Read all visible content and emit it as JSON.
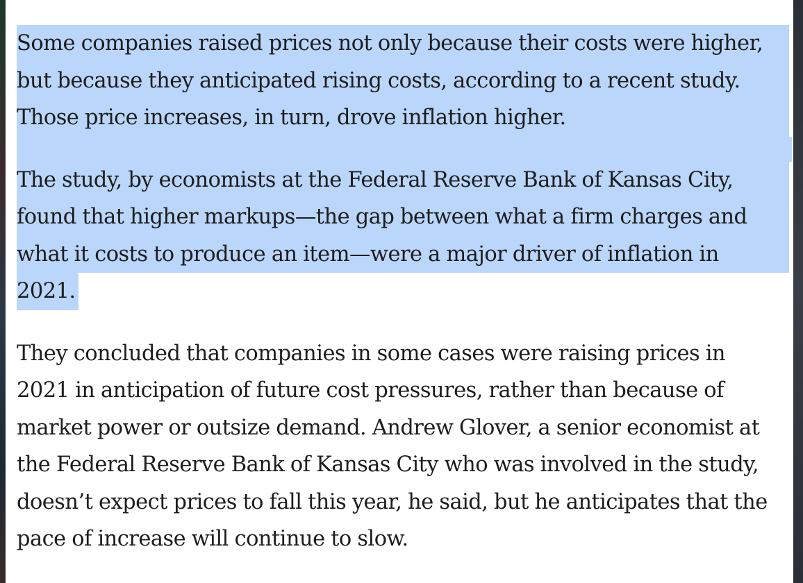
{
  "article": {
    "paragraphs": [
      {
        "selected": true,
        "lines": [
          "Some companies raised prices not only because their costs were higher,",
          "but because they anticipated rising costs, according to a recent study.",
          "Those price increases, in turn, drove inflation higher."
        ]
      },
      {
        "selected": true,
        "lines": [
          "The study, by economists at the Federal Reserve Bank of Kansas City,",
          "found that higher markups—the gap between what a firm charges and",
          "what it costs to produce an item—were a major driver of inflation in",
          "2021."
        ]
      },
      {
        "selected": false,
        "lines": [
          "They concluded that companies in some cases were raising prices in",
          "2021 in anticipation of future cost pressures, rather than because of",
          "market power or outsize demand. Andrew Glover, a senior economist at",
          "the Federal Reserve Bank of Kansas City who was involved in the study,",
          "doesn’t expect prices to fall this year, he said, but he anticipates that the",
          "pace of increase will continue to slow."
        ]
      }
    ]
  }
}
